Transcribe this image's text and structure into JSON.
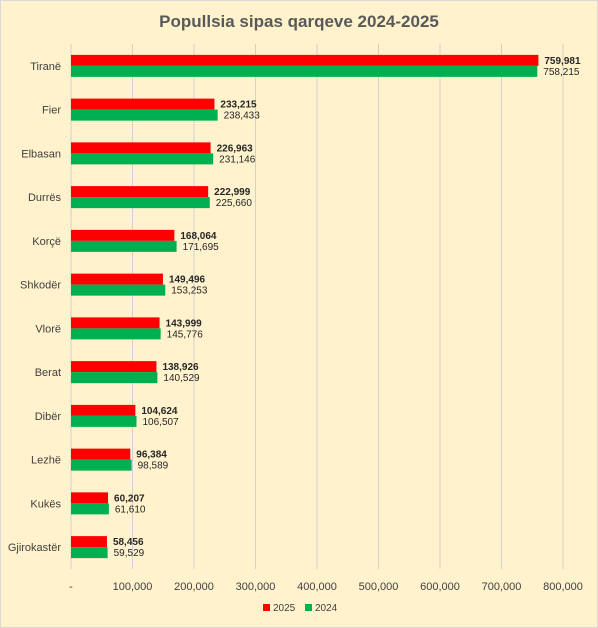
{
  "colors": {
    "series_2025": "#ff0000",
    "series_2024": "#00b050",
    "grid": "#d0d0d0",
    "background": "#fff2cc"
  },
  "chart_data": {
    "type": "bar",
    "orientation": "horizontal",
    "title": "Popullsia sipas qarqeve 2024-2025",
    "categories": [
      "Tiranë",
      "Fier",
      "Elbasan",
      "Durrës",
      "Korçë",
      "Shkodër",
      "Vlorë",
      "Berat",
      "Dibër",
      "Lezhë",
      "Kukës",
      "Gjirokastër"
    ],
    "series": [
      {
        "name": "2025",
        "values": [
          759981,
          233215,
          226963,
          222999,
          168064,
          149496,
          143999,
          138926,
          104624,
          96384,
          60207,
          58456
        ],
        "labels": [
          "759,981",
          "233,215",
          "226,963",
          "222,999",
          "168,064",
          "149,496",
          "143,999",
          "138,926",
          "104,624",
          "96,384",
          "60,207",
          "58,456"
        ]
      },
      {
        "name": "2024",
        "values": [
          758215,
          238433,
          231146,
          225660,
          171695,
          153253,
          145776,
          140529,
          106507,
          98589,
          61610,
          59529
        ],
        "labels": [
          "758,215",
          "238,433",
          "231,146",
          "225,660",
          "171,695",
          "153,253",
          "145,776",
          "140,529",
          "106,507",
          "98,589",
          "61,610",
          "59,529"
        ]
      }
    ],
    "xlim": [
      0,
      800000
    ],
    "ticks": [
      0,
      100000,
      200000,
      300000,
      400000,
      500000,
      600000,
      700000,
      800000
    ],
    "tick_labels": [
      "-",
      "100,000",
      "200,000",
      "300,000",
      "400,000",
      "500,000",
      "600,000",
      "700,000",
      "800,000"
    ],
    "grid": true,
    "legend_position": "bottom"
  }
}
